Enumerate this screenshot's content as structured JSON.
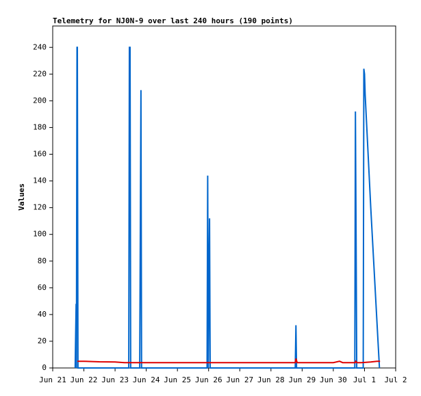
{
  "chart_data": {
    "type": "line",
    "title": "Telemetry for NJ0N-9 over last 240 hours (190 points)",
    "ylabel": "Values",
    "xlim": [
      0,
      11
    ],
    "xticks": [
      {
        "value": 0,
        "label": "Jun 21"
      },
      {
        "value": 1,
        "label": "Jun 22"
      },
      {
        "value": 2,
        "label": "Jun 23"
      },
      {
        "value": 3,
        "label": "Jun 24"
      },
      {
        "value": 4,
        "label": "Jun 25"
      },
      {
        "value": 5,
        "label": "Jun 26"
      },
      {
        "value": 6,
        "label": "Jun 27"
      },
      {
        "value": 7,
        "label": "Jun 28"
      },
      {
        "value": 8,
        "label": "Jun 29"
      },
      {
        "value": 9,
        "label": "Jun 30"
      },
      {
        "value": 10,
        "label": "Jul 1"
      },
      {
        "value": 11,
        "label": "Jul 2"
      }
    ],
    "ylim": [
      0,
      256
    ],
    "yticks": [
      0,
      20,
      40,
      60,
      80,
      100,
      120,
      140,
      160,
      180,
      200,
      220,
      240
    ],
    "series": [
      {
        "color": "#0066cc",
        "x": [
          0.72,
          0.75,
          0.76,
          0.78,
          0.79,
          0.81,
          2.44,
          2.46,
          2.48,
          2.5,
          2.79,
          2.81,
          2.83,
          2.85,
          4.95,
          4.97,
          4.99,
          5.01,
          5.03,
          5.05,
          7.78,
          7.8,
          7.82,
          9.69,
          9.71,
          9.73,
          9.75,
          9.96,
          9.98,
          10.0,
          10.02,
          10.2,
          10.48
        ],
        "values": [
          0,
          48,
          0,
          240,
          240,
          0,
          0,
          240,
          240,
          0,
          0,
          104,
          208,
          0,
          0,
          144,
          0,
          64,
          112,
          0,
          0,
          32,
          0,
          0,
          192,
          96,
          0,
          0,
          224,
          220,
          205,
          120,
          0
        ]
      },
      {
        "color": "#dd0000",
        "x": [
          0.79,
          1.0,
          1.5,
          2.0,
          2.3,
          4.0,
          7.78,
          7.8,
          7.84,
          8.0,
          9.0,
          9.2,
          9.3,
          9.7,
          9.72,
          9.76,
          9.9,
          10.2,
          10.4,
          10.5
        ],
        "values": [
          5,
          5,
          4.6,
          4.5,
          4,
          4,
          4,
          7,
          4,
          4,
          4,
          5,
          4,
          4,
          5,
          4,
          4,
          4.5,
          5,
          5
        ]
      }
    ]
  }
}
